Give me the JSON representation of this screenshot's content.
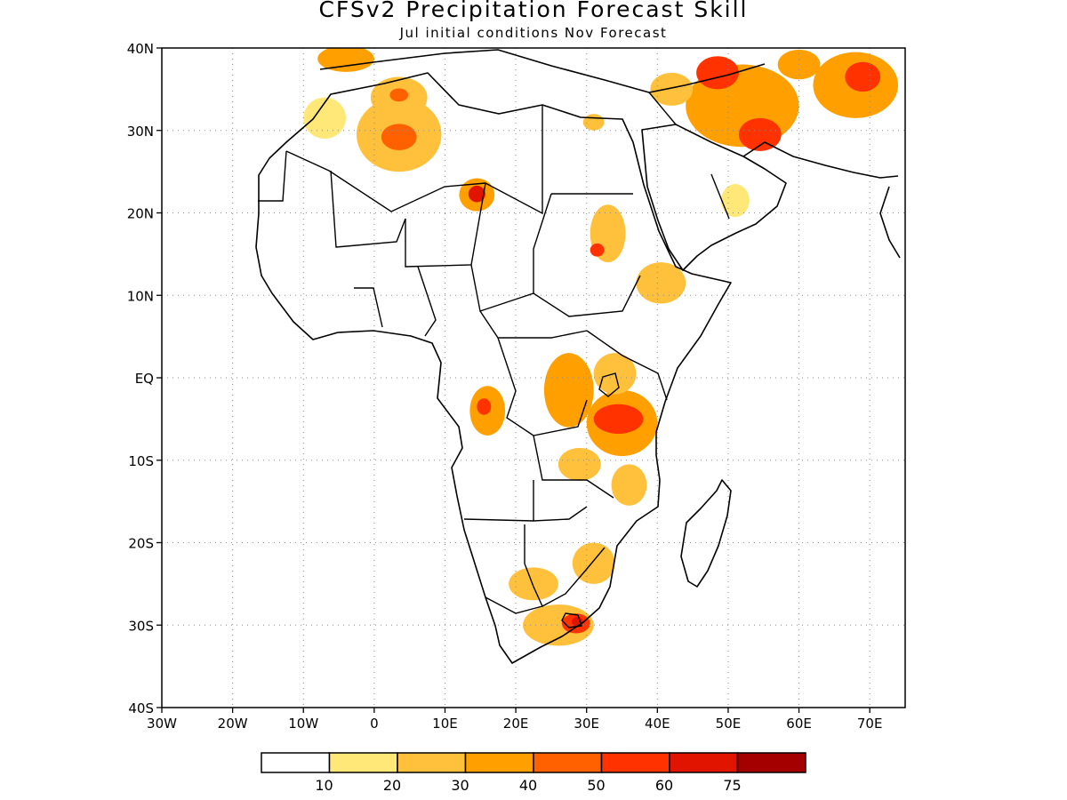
{
  "title": "CFSv2 Precipitation Forecast Skill",
  "subtitle": "Jul initial conditions  Nov Forecast",
  "axes": {
    "lon_min": -30,
    "lon_max": 75,
    "lat_min": -40,
    "lat_max": 40,
    "x_ticks": [
      {
        "value": -30,
        "label": "30W"
      },
      {
        "value": -20,
        "label": "20W"
      },
      {
        "value": -10,
        "label": "10W"
      },
      {
        "value": 0,
        "label": "0"
      },
      {
        "value": 10,
        "label": "10E"
      },
      {
        "value": 20,
        "label": "20E"
      },
      {
        "value": 30,
        "label": "30E"
      },
      {
        "value": 40,
        "label": "40E"
      },
      {
        "value": 50,
        "label": "50E"
      },
      {
        "value": 60,
        "label": "60E"
      },
      {
        "value": 70,
        "label": "70E"
      }
    ],
    "y_ticks": [
      {
        "value": 40,
        "label": "40N"
      },
      {
        "value": 30,
        "label": "30N"
      },
      {
        "value": 20,
        "label": "20N"
      },
      {
        "value": 10,
        "label": "10N"
      },
      {
        "value": 0,
        "label": "EQ"
      },
      {
        "value": -10,
        "label": "10S"
      },
      {
        "value": -20,
        "label": "20S"
      },
      {
        "value": -30,
        "label": "30S"
      },
      {
        "value": -40,
        "label": "40S"
      }
    ],
    "grid": "dotted"
  },
  "colorbar": {
    "colors": [
      "#ffffff",
      "#ffe878",
      "#ffc03c",
      "#ffa000",
      "#ff6000",
      "#ff3200",
      "#e11400",
      "#a50000"
    ],
    "labels": [
      "10",
      "20",
      "30",
      "40",
      "50",
      "60",
      "75"
    ]
  },
  "chart_data": {
    "type": "heatmap",
    "variable": "precipitation forecast skill",
    "levels": [
      10,
      20,
      30,
      40,
      50,
      60,
      75
    ],
    "regions": [
      {
        "lon": 3.5,
        "lat": 29.5,
        "rx": 6,
        "ry": 4.5,
        "level": 20
      },
      {
        "lon": 3.5,
        "lat": 29.2,
        "rx": 2.5,
        "ry": 1.6,
        "level": 40
      },
      {
        "lon": 3.5,
        "lat": 34.0,
        "rx": 4,
        "ry": 2.5,
        "level": 20
      },
      {
        "lon": 3.5,
        "lat": 34.3,
        "rx": 1.3,
        "ry": 0.8,
        "level": 40
      },
      {
        "lon": -7.0,
        "lat": 31.5,
        "rx": 3,
        "ry": 2.5,
        "level": 10
      },
      {
        "lon": -4.0,
        "lat": 38.7,
        "rx": 4,
        "ry": 1.6,
        "level": 30
      },
      {
        "lon": 14.5,
        "lat": 22.2,
        "rx": 2.5,
        "ry": 2.0,
        "level": 30
      },
      {
        "lon": 14.5,
        "lat": 22.3,
        "rx": 1.2,
        "ry": 1.0,
        "level": 60
      },
      {
        "lon": 33.0,
        "lat": 17.5,
        "rx": 2.5,
        "ry": 3.5,
        "level": 20
      },
      {
        "lon": 31.5,
        "lat": 15.5,
        "rx": 1.0,
        "ry": 0.8,
        "level": 50
      },
      {
        "lon": 40.5,
        "lat": 11.5,
        "rx": 3.5,
        "ry": 2.5,
        "level": 20
      },
      {
        "lon": 27.5,
        "lat": -1.5,
        "rx": 3.5,
        "ry": 4.5,
        "level": 30
      },
      {
        "lon": 35.0,
        "lat": -5.5,
        "rx": 5,
        "ry": 4.0,
        "level": 30
      },
      {
        "lon": 34.5,
        "lat": -5.0,
        "rx": 3.5,
        "ry": 1.8,
        "level": 50
      },
      {
        "lon": 16.0,
        "lat": -4.0,
        "rx": 2.5,
        "ry": 3.0,
        "level": 30
      },
      {
        "lon": 15.5,
        "lat": -3.5,
        "rx": 1.0,
        "ry": 1.0,
        "level": 50
      },
      {
        "lon": 34.0,
        "lat": 0.5,
        "rx": 3,
        "ry": 2.5,
        "level": 20
      },
      {
        "lon": 29.0,
        "lat": -10.5,
        "rx": 3,
        "ry": 2.0,
        "level": 20
      },
      {
        "lon": 36.0,
        "lat": -13.0,
        "rx": 2.5,
        "ry": 2.5,
        "level": 20
      },
      {
        "lon": 31.0,
        "lat": -22.5,
        "rx": 3,
        "ry": 2.5,
        "level": 20
      },
      {
        "lon": 22.5,
        "lat": -25.0,
        "rx": 3.5,
        "ry": 2.0,
        "level": 20
      },
      {
        "lon": 26.0,
        "lat": -30.0,
        "rx": 5,
        "ry": 2.5,
        "level": 20
      },
      {
        "lon": 28.5,
        "lat": -29.8,
        "rx": 2,
        "ry": 1.2,
        "level": 50
      },
      {
        "lon": 28.7,
        "lat": -29.6,
        "rx": 0.8,
        "ry": 0.6,
        "level": 60
      },
      {
        "lon": 52.0,
        "lat": 33.0,
        "rx": 8,
        "ry": 5,
        "level": 30
      },
      {
        "lon": 54.5,
        "lat": 29.5,
        "rx": 3,
        "ry": 2,
        "level": 50
      },
      {
        "lon": 48.5,
        "lat": 37.0,
        "rx": 3,
        "ry": 2,
        "level": 50
      },
      {
        "lon": 68.0,
        "lat": 35.5,
        "rx": 6,
        "ry": 4,
        "level": 30
      },
      {
        "lon": 69.0,
        "lat": 36.5,
        "rx": 2.5,
        "ry": 1.8,
        "level": 50
      },
      {
        "lon": 42.0,
        "lat": 35.0,
        "rx": 3,
        "ry": 2,
        "level": 20
      },
      {
        "lon": 60.0,
        "lat": 38.0,
        "rx": 3,
        "ry": 1.8,
        "level": 30
      },
      {
        "lon": 51.0,
        "lat": 21.5,
        "rx": 2,
        "ry": 2,
        "level": 10
      },
      {
        "lon": 31.0,
        "lat": 31.0,
        "rx": 1.5,
        "ry": 1,
        "level": 20
      }
    ]
  }
}
